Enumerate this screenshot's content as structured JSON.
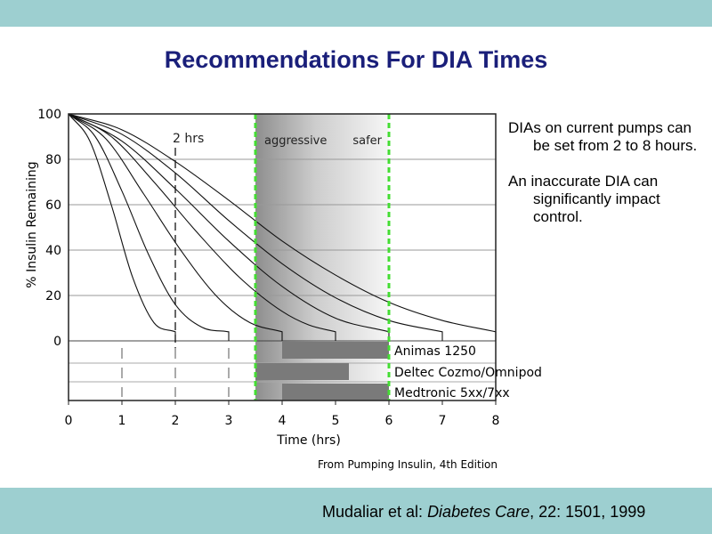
{
  "slide": {
    "title": "Recommendations For DIA Times",
    "side_paragraphs": [
      "DIAs on current pumps can be set from 2 to 8 hours.",
      "An inaccurate DIA can significantly impact control."
    ],
    "citation": {
      "authors": "Mudaliar et al: ",
      "journal": "Diabetes Care",
      "details": ", 22: 1501, 1999"
    },
    "colors": {
      "band": "#9dcfd0",
      "title": "#1a1f7a",
      "dashed_line": "#44dd33",
      "pump_bar": "#7a7a7a"
    }
  },
  "chart_data": {
    "type": "line",
    "xlabel": "Time (hrs)",
    "ylabel": "% Insulin Remaining",
    "xlim": [
      0,
      8
    ],
    "ylim": [
      0,
      100
    ],
    "x_ticks": [
      "0",
      "1",
      "2",
      "3",
      "4",
      "5",
      "6",
      "7",
      "8"
    ],
    "y_ticks": [
      "0",
      "20",
      "40",
      "60",
      "80",
      "100"
    ],
    "grid": "horizontal",
    "series": [
      {
        "dia": 2,
        "x": [
          0,
          0.4,
          0.8,
          1.2,
          1.6,
          2.0
        ],
        "y": [
          100,
          88,
          60,
          28,
          8,
          4
        ]
      },
      {
        "dia": 3,
        "x": [
          0,
          0.5,
          1.0,
          1.5,
          2.0,
          2.5,
          3.0
        ],
        "y": [
          100,
          90,
          66,
          38,
          16,
          6,
          4
        ]
      },
      {
        "dia": 4,
        "x": [
          0,
          0.7,
          1.4,
          2.1,
          2.8,
          3.4,
          4.0
        ],
        "y": [
          100,
          89,
          65,
          40,
          19,
          8,
          4
        ]
      },
      {
        "dia": 5,
        "x": [
          0,
          0.8,
          1.6,
          2.4,
          3.2,
          4.0,
          4.5,
          5.0
        ],
        "y": [
          100,
          90,
          70,
          48,
          28,
          13,
          7,
          4
        ]
      },
      {
        "dia": 6,
        "x": [
          0,
          1.0,
          2.0,
          3.0,
          4.0,
          5.0,
          6.0
        ],
        "y": [
          100,
          88,
          67,
          44,
          24,
          10,
          4
        ]
      },
      {
        "dia": 7,
        "x": [
          0,
          1.0,
          2.0,
          3.0,
          4.0,
          5.0,
          6.0,
          7.0
        ],
        "y": [
          100,
          91,
          74,
          53,
          34,
          19,
          9,
          4
        ]
      },
      {
        "dia": 8,
        "x": [
          0,
          1.0,
          2.0,
          3.0,
          4.0,
          5.0,
          6.0,
          7.0,
          8.0
        ],
        "y": [
          100,
          93,
          79,
          62,
          44,
          29,
          17,
          9,
          4
        ]
      }
    ],
    "shaded_region": {
      "x": [
        3.5,
        6.0
      ],
      "labels": [
        "aggressive",
        "safer"
      ]
    },
    "green_dashed_lines_x": [
      3.5,
      6.0
    ],
    "marker_2hrs": {
      "x": 2,
      "label": "2 hrs"
    },
    "pump_ranges": [
      {
        "name": "Animas 1250",
        "x": [
          4,
          6
        ]
      },
      {
        "name": "Deltec Cozmo/Omnipod",
        "x": [
          3.5,
          5.25
        ]
      },
      {
        "name": "Medtronic 5xx/7xx",
        "x": [
          4,
          6
        ]
      }
    ],
    "source": "From Pumping Insulin, 4th Edition"
  }
}
